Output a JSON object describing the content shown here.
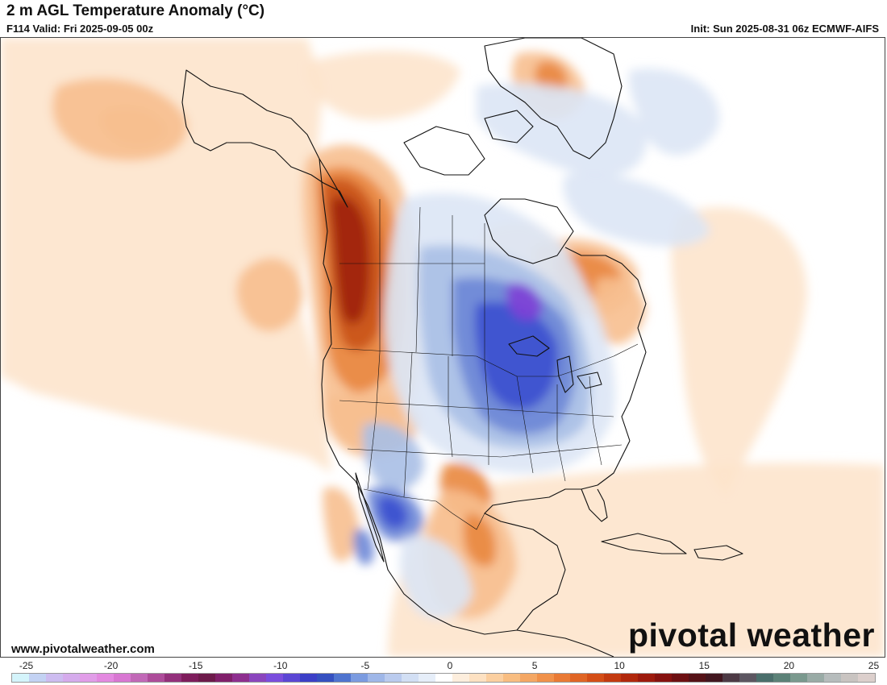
{
  "header": {
    "title": "2 m AGL Temperature Anomaly (°C)",
    "valid": "F114 Valid: Fri 2025-09-05 00z",
    "init": "Init: Sun 2025-08-31 06z ECMWF-AIFS"
  },
  "footer": {
    "website": "www.pivotalweather.com",
    "brand": "pivotal weather"
  },
  "map": {
    "region": "North America",
    "units": "°C",
    "palette": {
      "vcold": "#7e3fd6",
      "cold3": "#3a4fcf",
      "cold2": "#6c86d6",
      "cold1": "#a9bfe6",
      "cold0": "#dce6f5",
      "warm0": "#fde4cc",
      "warm1": "#f7bf8f",
      "warm2": "#e9873f",
      "warm3": "#c9531b",
      "hot": "#9e1f10"
    }
  },
  "colorbar": {
    "min": -25,
    "max": 25,
    "tick_labels": [
      "-25",
      "-20",
      "-15",
      "-10",
      "-5",
      "0",
      "5",
      "10",
      "15",
      "20",
      "25"
    ],
    "colors": [
      "#d4f4fb",
      "#c3d2f3",
      "#cdbcf0",
      "#d5abec",
      "#e19de8",
      "#e389e0",
      "#d877d2",
      "#c168b7",
      "#ad4c9a",
      "#93307b",
      "#7e1d5c",
      "#6d1a4a",
      "#801f6a",
      "#8e2f8f",
      "#8a45bd",
      "#7a4ddd",
      "#5b46d4",
      "#3c3fc7",
      "#3550c0",
      "#4f74cf",
      "#7b9be0",
      "#9fb7e8",
      "#bacbee",
      "#d2dff4",
      "#e6eef9",
      "#ffffff",
      "#fdeedd",
      "#fde1c2",
      "#fbcfa0",
      "#f8bd81",
      "#f4a764",
      "#f0914a",
      "#e97a35",
      "#e06525",
      "#d44e17",
      "#c33a10",
      "#b1280c",
      "#9d1a0d",
      "#86120f",
      "#6d1012",
      "#551217",
      "#42161f",
      "#4d3a45",
      "#5c5661",
      "#4a6e6b",
      "#5c8278",
      "#7a998e",
      "#99aba6",
      "#b6bcbc",
      "#c9c4c1",
      "#dccfcc"
    ]
  }
}
